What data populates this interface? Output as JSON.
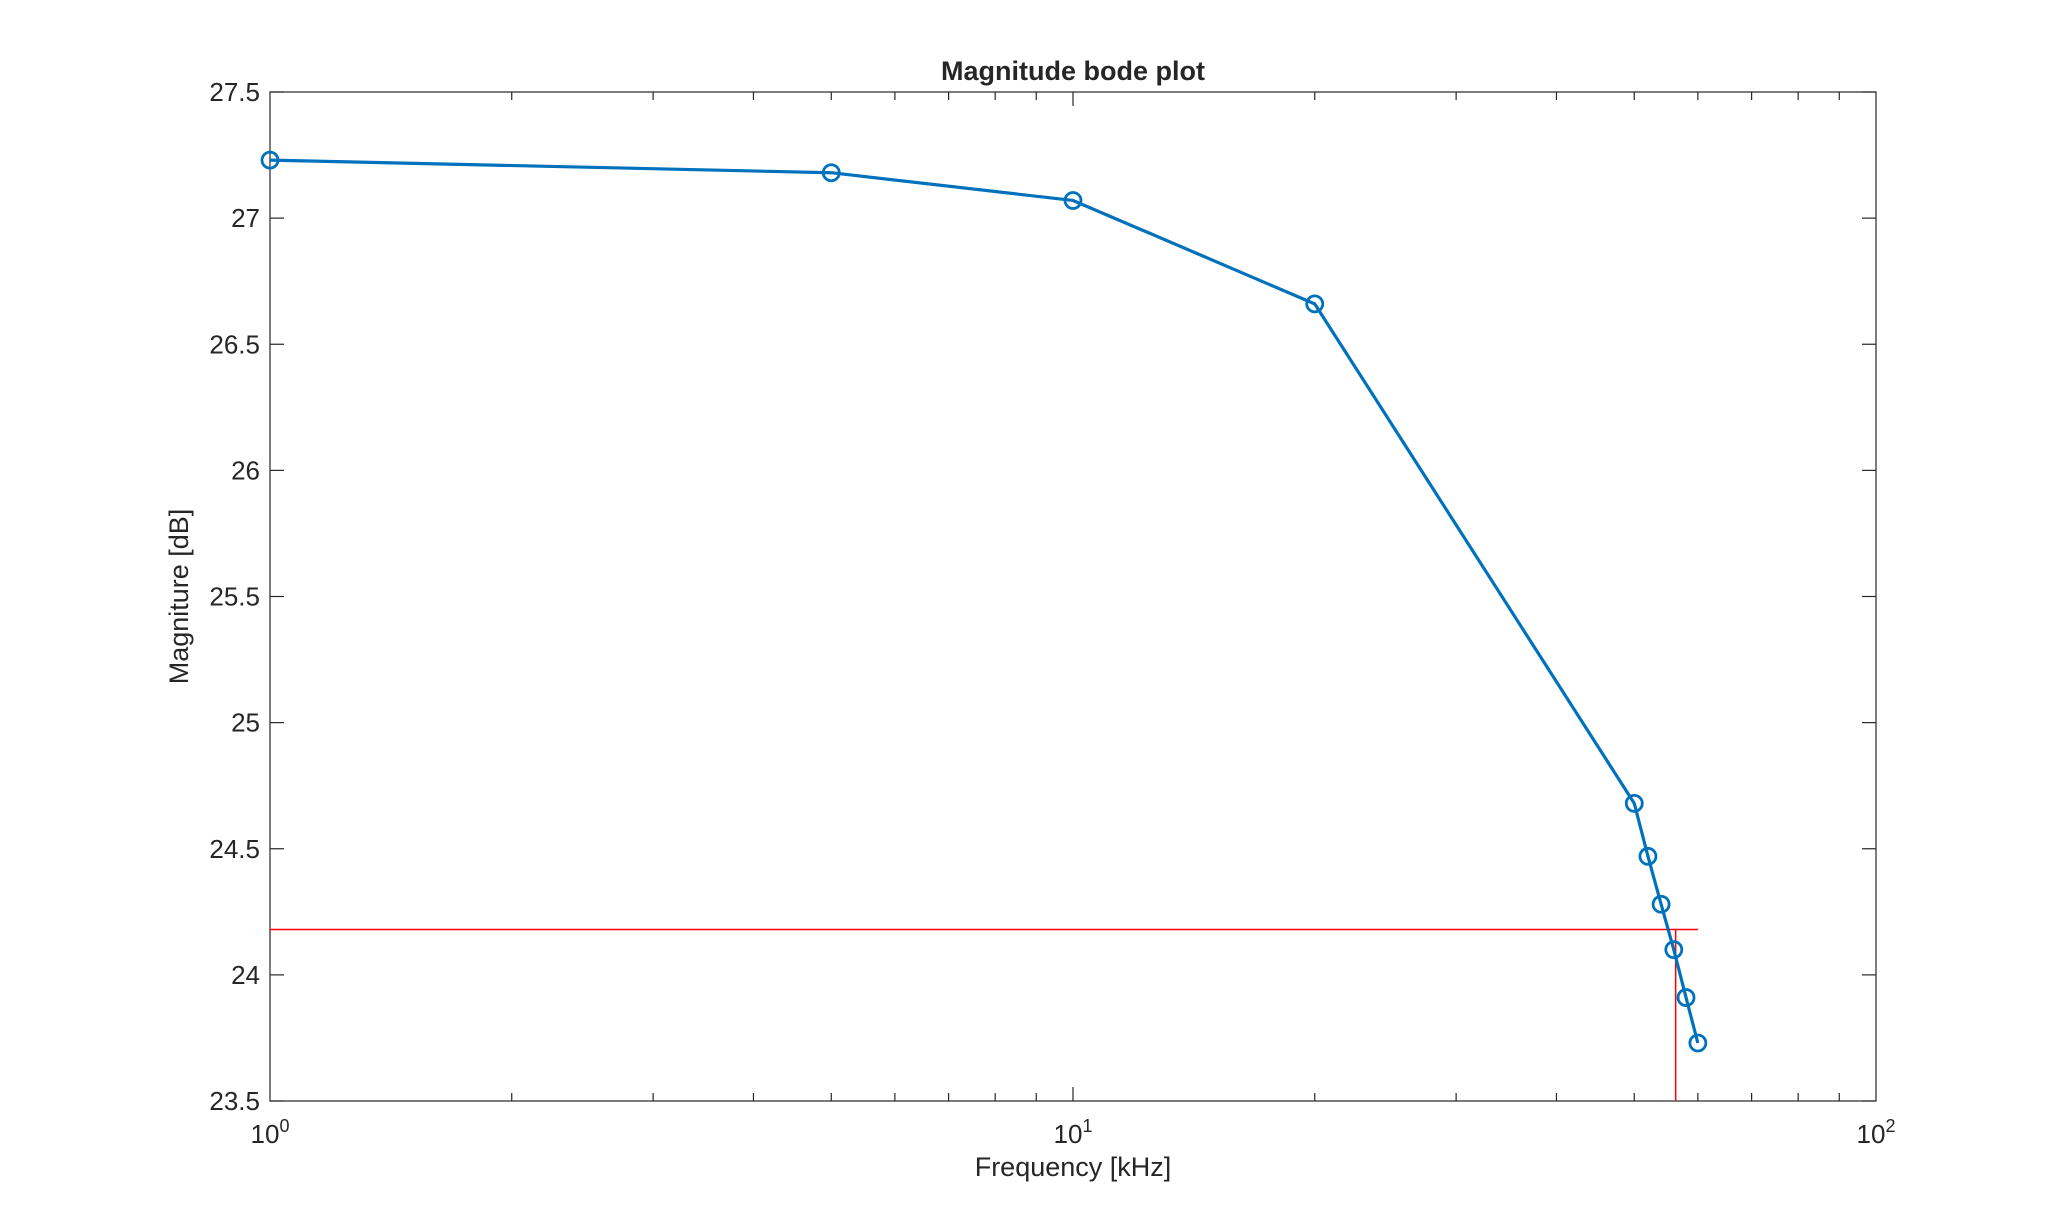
{
  "chart_data": {
    "type": "line",
    "title": "Magnitude bode plot",
    "xlabel": "Frequency [kHz]",
    "ylabel": "Magniture [dB]",
    "xscale": "log",
    "xlim": [
      1,
      100
    ],
    "ylim": [
      23.5,
      27.5
    ],
    "grid": false,
    "legend": "none",
    "x_ticks": [
      {
        "base": "10",
        "exp": "0"
      },
      {
        "base": "10",
        "exp": "1"
      },
      {
        "base": "10",
        "exp": "2"
      }
    ],
    "y_ticks": [
      "23.5",
      "24",
      "24.5",
      "25",
      "25.5",
      "26",
      "26.5",
      "27",
      "27.5"
    ],
    "series": [
      {
        "color": "#0072BD",
        "marker": "circle",
        "x": [
          1,
          5,
          10,
          20,
          50,
          52,
          54,
          56,
          58,
          60
        ],
        "y": [
          27.23,
          27.18,
          27.07,
          26.66,
          24.68,
          24.47,
          24.28,
          24.1,
          23.91,
          23.73
        ]
      }
    ],
    "reference_lines": [
      {
        "orientation": "horizontal",
        "y": 24.18,
        "x_from": 1,
        "x_to": 60,
        "color": "#FF0000"
      },
      {
        "orientation": "vertical",
        "x": 56.3,
        "y_from": 23.5,
        "y_to": 24.18,
        "color": "#FF0000"
      }
    ]
  }
}
